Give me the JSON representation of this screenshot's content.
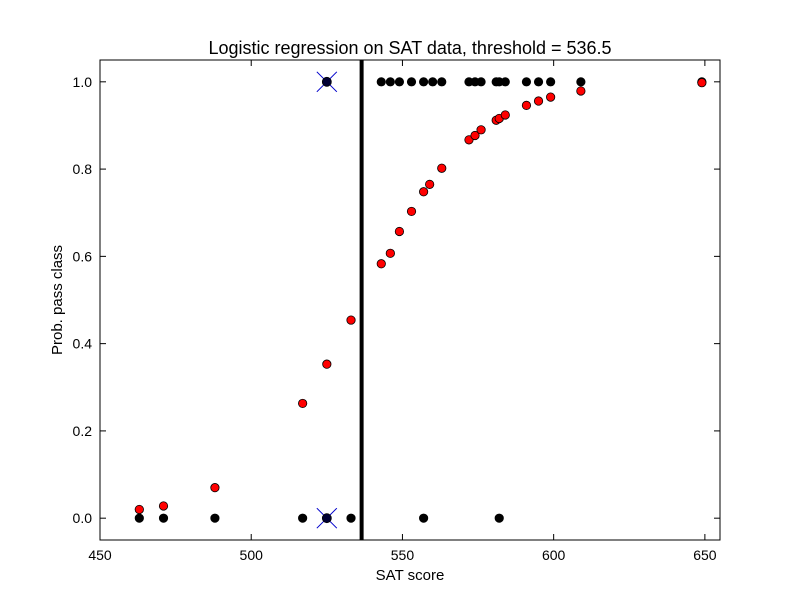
{
  "chart_data": {
    "type": "scatter",
    "title": "Logistic regression on SAT data, threshold = 536.5",
    "xlabel": "SAT score",
    "ylabel": "Prob. pass class",
    "xlim": [
      450,
      655
    ],
    "ylim": [
      -0.05,
      1.05
    ],
    "xticks": [
      450,
      500,
      550,
      600,
      650
    ],
    "yticks": [
      0.0,
      0.2,
      0.4,
      0.6,
      0.8,
      1.0
    ],
    "threshold": 536.5,
    "grid": false,
    "series": [
      {
        "marker": "circle",
        "color": "#000000",
        "points": [
          {
            "x": 463,
            "y": 0
          },
          {
            "x": 471,
            "y": 0
          },
          {
            "x": 488,
            "y": 0
          },
          {
            "x": 517,
            "y": 0
          },
          {
            "x": 525,
            "y": 0
          },
          {
            "x": 533,
            "y": 0
          },
          {
            "x": 557,
            "y": 0
          },
          {
            "x": 582,
            "y": 0
          },
          {
            "x": 525,
            "y": 1
          },
          {
            "x": 543,
            "y": 1
          },
          {
            "x": 546,
            "y": 1
          },
          {
            "x": 549,
            "y": 1
          },
          {
            "x": 553,
            "y": 1
          },
          {
            "x": 557,
            "y": 1
          },
          {
            "x": 560,
            "y": 1
          },
          {
            "x": 563,
            "y": 1
          },
          {
            "x": 572,
            "y": 1
          },
          {
            "x": 574,
            "y": 1
          },
          {
            "x": 576,
            "y": 1
          },
          {
            "x": 581,
            "y": 1
          },
          {
            "x": 582,
            "y": 1
          },
          {
            "x": 584,
            "y": 1
          },
          {
            "x": 591,
            "y": 1
          },
          {
            "x": 595,
            "y": 1
          },
          {
            "x": 599,
            "y": 1
          },
          {
            "x": 609,
            "y": 1
          },
          {
            "x": 649,
            "y": 1
          }
        ]
      },
      {
        "marker": "circle",
        "color": "#ff0000",
        "points": [
          {
            "x": 463,
            "y": 0.02
          },
          {
            "x": 471,
            "y": 0.028
          },
          {
            "x": 488,
            "y": 0.07
          },
          {
            "x": 517,
            "y": 0.263
          },
          {
            "x": 525,
            "y": 0.353
          },
          {
            "x": 533,
            "y": 0.454
          },
          {
            "x": 543,
            "y": 0.583
          },
          {
            "x": 546,
            "y": 0.607
          },
          {
            "x": 549,
            "y": 0.657
          },
          {
            "x": 553,
            "y": 0.703
          },
          {
            "x": 557,
            "y": 0.748
          },
          {
            "x": 559,
            "y": 0.765
          },
          {
            "x": 563,
            "y": 0.802
          },
          {
            "x": 572,
            "y": 0.867
          },
          {
            "x": 574,
            "y": 0.877
          },
          {
            "x": 576,
            "y": 0.89
          },
          {
            "x": 581,
            "y": 0.912
          },
          {
            "x": 582,
            "y": 0.916
          },
          {
            "x": 584,
            "y": 0.924
          },
          {
            "x": 591,
            "y": 0.946
          },
          {
            "x": 595,
            "y": 0.956
          },
          {
            "x": 599,
            "y": 0.965
          },
          {
            "x": 609,
            "y": 0.979
          },
          {
            "x": 649,
            "y": 0.998
          }
        ]
      },
      {
        "marker": "x-highlight",
        "color": "#0000cc",
        "points": [
          {
            "x": 525,
            "y": 1
          },
          {
            "x": 525,
            "y": 0
          }
        ]
      }
    ]
  }
}
